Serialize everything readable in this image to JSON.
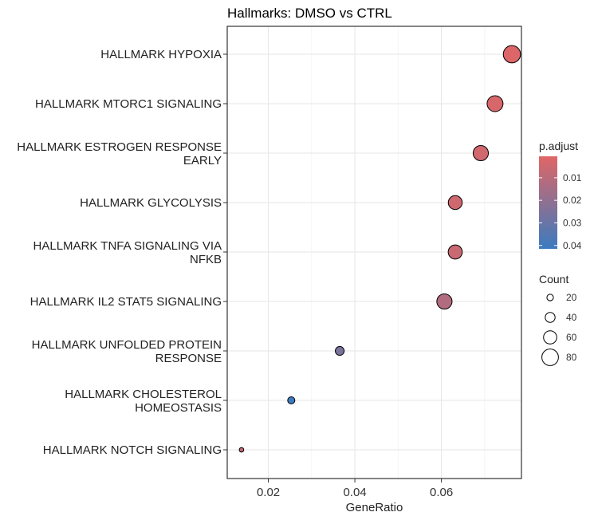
{
  "chart_data": {
    "type": "scatter",
    "title": "Hallmarks: DMSO vs CTRL",
    "xlabel": "GeneRatio",
    "ylabel": "",
    "xlim": [
      0.0105,
      0.0785
    ],
    "x_ticks": [
      0.02,
      0.04,
      0.06
    ],
    "x_tick_labels": [
      "0.02",
      "0.04",
      "0.06"
    ],
    "grid": true,
    "categories": [
      [
        "HALLMARK HYPOXIA"
      ],
      [
        "HALLMARK MTORC1 SIGNALING"
      ],
      [
        "HALLMARK ESTROGEN RESPONSE",
        "EARLY"
      ],
      [
        "HALLMARK GLYCOLYSIS"
      ],
      [
        "HALLMARK TNFA SIGNALING VIA",
        "NFKB"
      ],
      [
        "HALLMARK IL2 STAT5 SIGNALING"
      ],
      [
        "HALLMARK UNFOLDED PROTEIN",
        "RESPONSE"
      ],
      [
        "HALLMARK CHOLESTEROL",
        "HOMEOSTASIS"
      ],
      [
        "HALLMARK NOTCH SIGNALING"
      ]
    ],
    "points": [
      {
        "x": 0.0763,
        "count": 84,
        "p_adjust": 0.0012
      },
      {
        "x": 0.0724,
        "count": 76,
        "p_adjust": 0.0028
      },
      {
        "x": 0.0691,
        "count": 72,
        "p_adjust": 0.0043
      },
      {
        "x": 0.0632,
        "count": 64,
        "p_adjust": 0.0048
      },
      {
        "x": 0.0632,
        "count": 65,
        "p_adjust": 0.0062
      },
      {
        "x": 0.0607,
        "count": 72,
        "p_adjust": 0.012
      },
      {
        "x": 0.0365,
        "count": 34,
        "p_adjust": 0.0255
      },
      {
        "x": 0.0253,
        "count": 24,
        "p_adjust": 0.0405
      },
      {
        "x": 0.0138,
        "count": 8,
        "p_adjust": 0.007
      }
    ],
    "color_legend": {
      "title": "p.adjust",
      "low_color": "#e06666",
      "high_color": "#3b7bbf",
      "range": [
        0.0005,
        0.0415
      ],
      "ticks": [
        0.01,
        0.02,
        0.03,
        0.04
      ],
      "tick_labels": [
        "0.01",
        "0.02",
        "0.03",
        "0.04"
      ],
      "position": "right"
    },
    "size_legend": {
      "title": "Count",
      "values": [
        20,
        40,
        60,
        80
      ],
      "labels": [
        "20",
        "40",
        "60",
        "80"
      ],
      "position": "right"
    }
  }
}
